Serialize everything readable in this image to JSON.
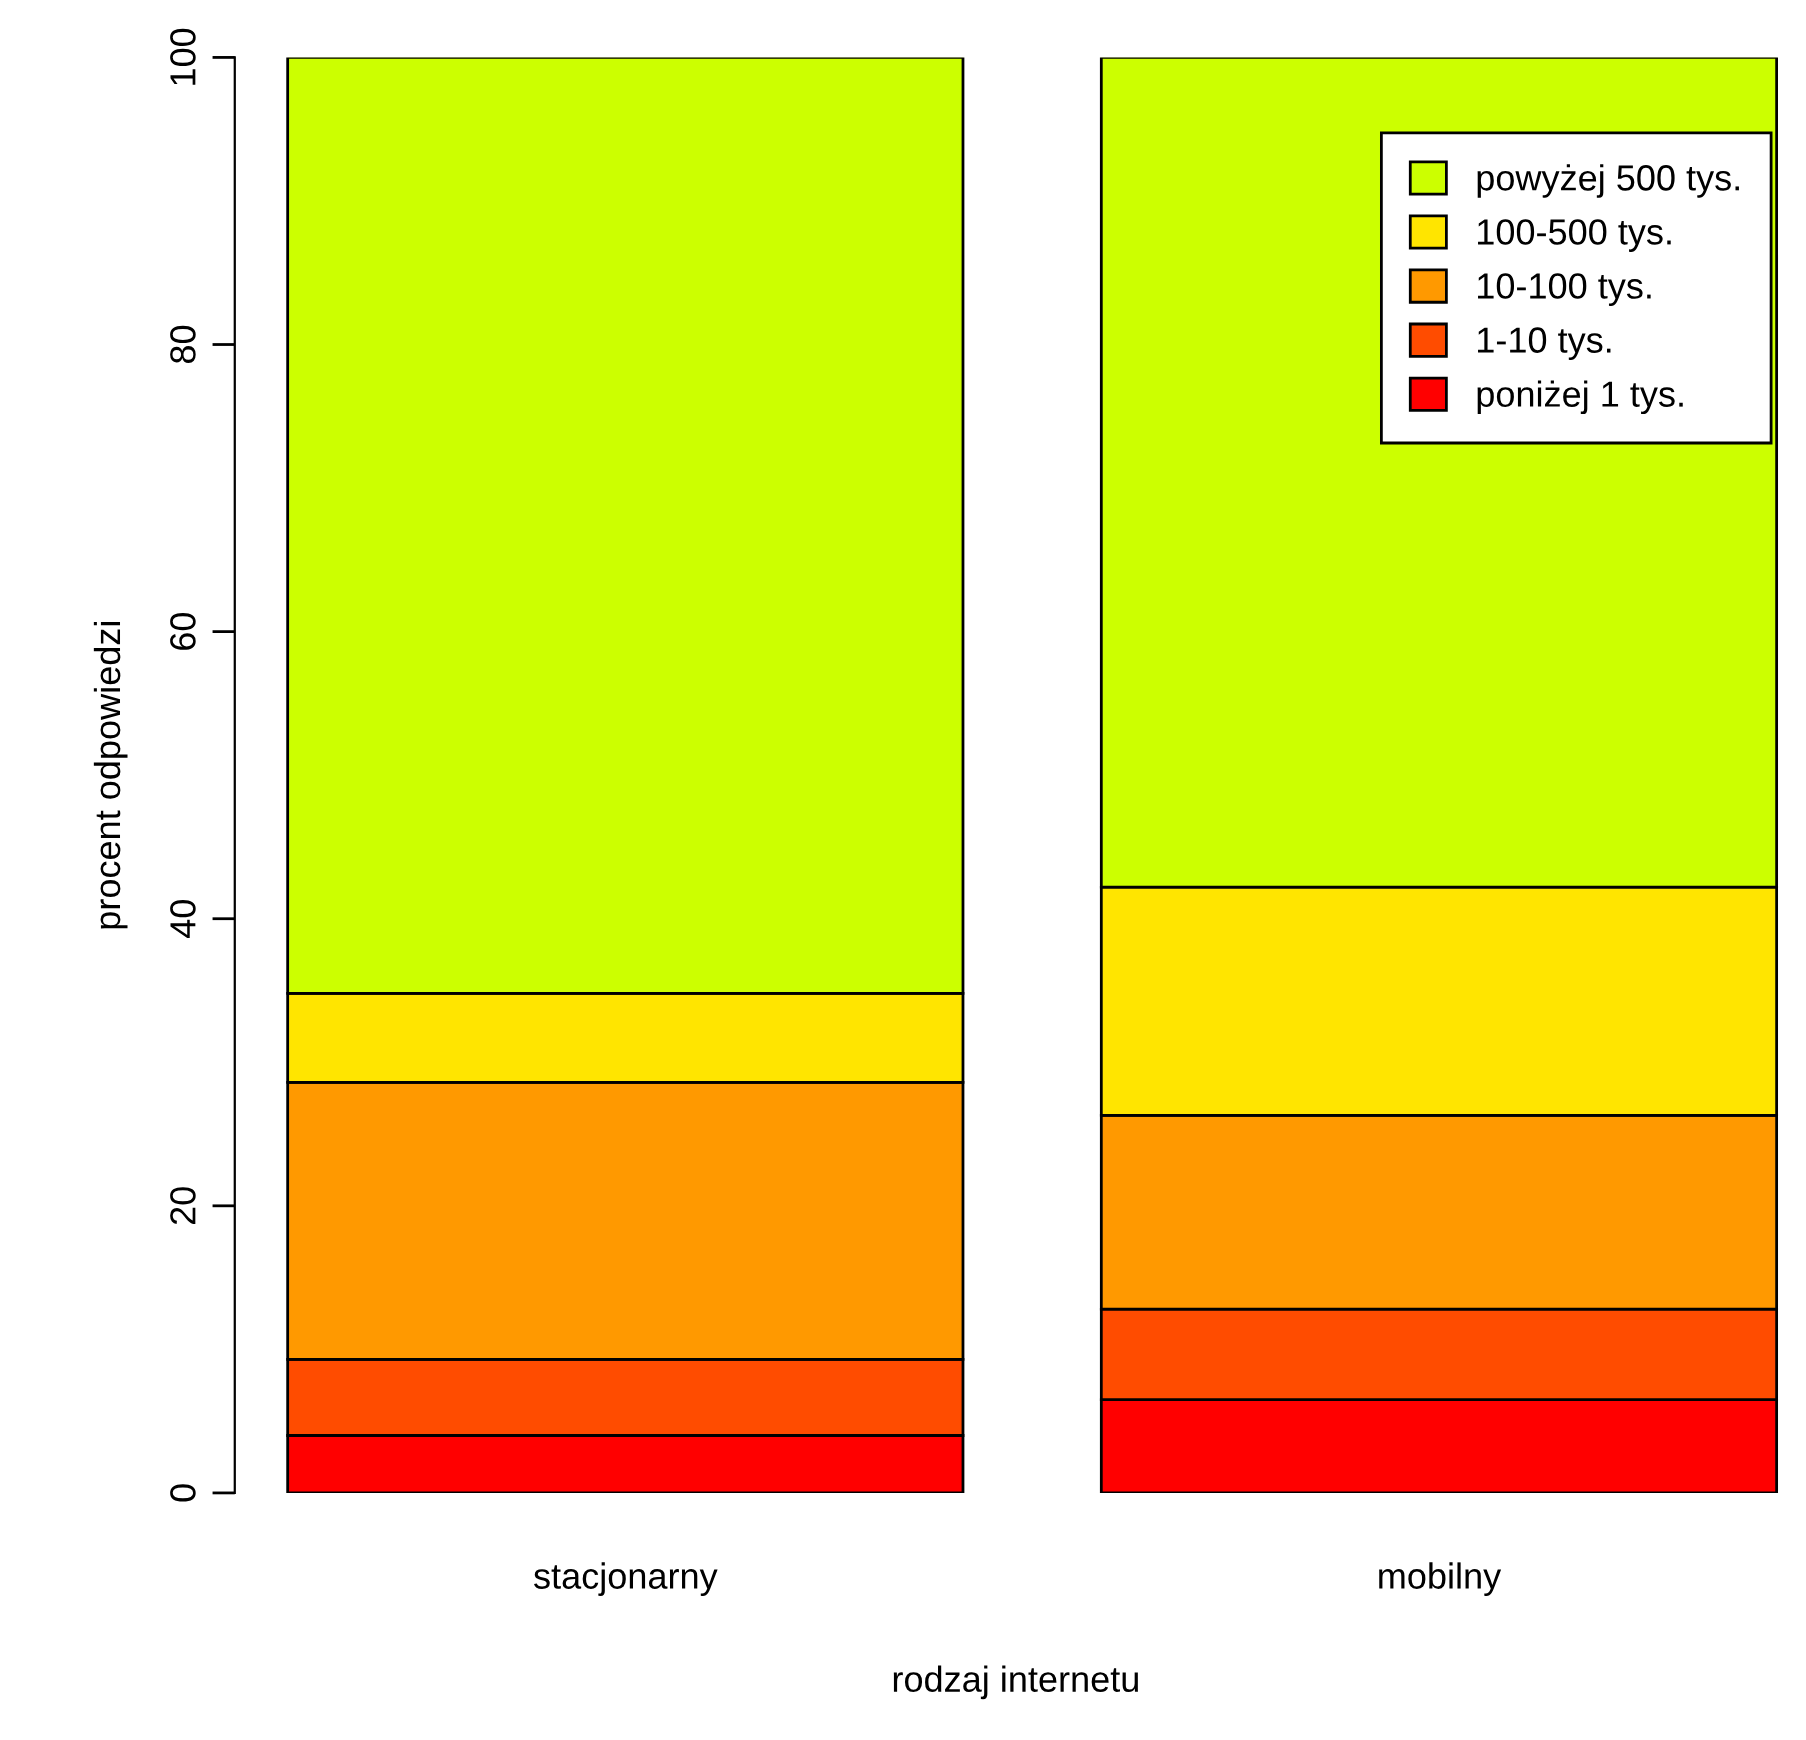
{
  "chart_data": {
    "type": "bar",
    "stacked": true,
    "xlabel": "rodzaj internetu",
    "ylabel": "procent odpowiedzi",
    "categories": [
      "stacjonarny",
      "mobilny"
    ],
    "series": [
      {
        "name": "poniżej 1 tys.",
        "color": "#ff0000",
        "values": [
          4.0,
          6.5
        ]
      },
      {
        "name": "1-10 tys.",
        "color": "#ff4c00",
        "values": [
          5.3,
          6.3
        ]
      },
      {
        "name": "10-100 tys.",
        "color": "#ff9900",
        "values": [
          19.3,
          13.5
        ]
      },
      {
        "name": "100-500 tys.",
        "color": "#ffe500",
        "values": [
          6.2,
          15.9
        ]
      },
      {
        "name": "powyżej 500 tys.",
        "color": "#ccff00",
        "values": [
          65.2,
          57.8
        ]
      }
    ],
    "ylim": [
      0,
      100
    ],
    "yticks": [
      0,
      20,
      40,
      60,
      80,
      100
    ],
    "grid": false,
    "legend": "top right"
  }
}
